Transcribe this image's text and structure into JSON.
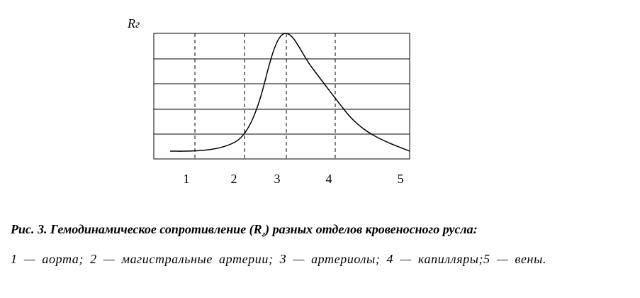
{
  "figure": {
    "y_label_parts": [
      "R",
      "г"
    ],
    "x_labels": [
      "1",
      "2",
      "3",
      "4",
      "5"
    ]
  },
  "caption": {
    "title_parts": [
      "Рис. 3. Гемодинамическое сопротивление (R",
      "г",
      ") разных отделов кровеносного русла:"
    ],
    "text": "1 — аорта; 2 — магистральные артерии; 3 — артериолы; 4 — капилляры;5 — вены."
  }
}
